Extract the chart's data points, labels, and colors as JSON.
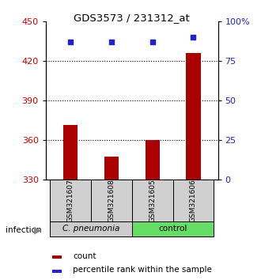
{
  "title": "GDS3573 / 231312_at",
  "samples": [
    "GSM321607",
    "GSM321608",
    "GSM321605",
    "GSM321606"
  ],
  "count_values": [
    371,
    347,
    360,
    426
  ],
  "percentile_values": [
    87,
    87,
    87,
    90
  ],
  "ylim_left": [
    330,
    450
  ],
  "ylim_right": [
    0,
    100
  ],
  "yticks_left": [
    330,
    360,
    390,
    420,
    450
  ],
  "yticks_right": [
    0,
    25,
    50,
    75,
    100
  ],
  "ytick_labels_right": [
    "0",
    "25",
    "50",
    "75",
    "100%"
  ],
  "bar_color": "#aa0000",
  "dot_color": "#2222cc",
  "group_labels": [
    "C. pneumonia",
    "control"
  ],
  "group_color_gray": "#cccccc",
  "group_color_green": "#66dd66",
  "infection_label": "infection",
  "legend_count_label": "count",
  "legend_pct_label": "percentile rank within the sample",
  "dotted_yticks": [
    360,
    390,
    420
  ],
  "bar_width": 0.35
}
